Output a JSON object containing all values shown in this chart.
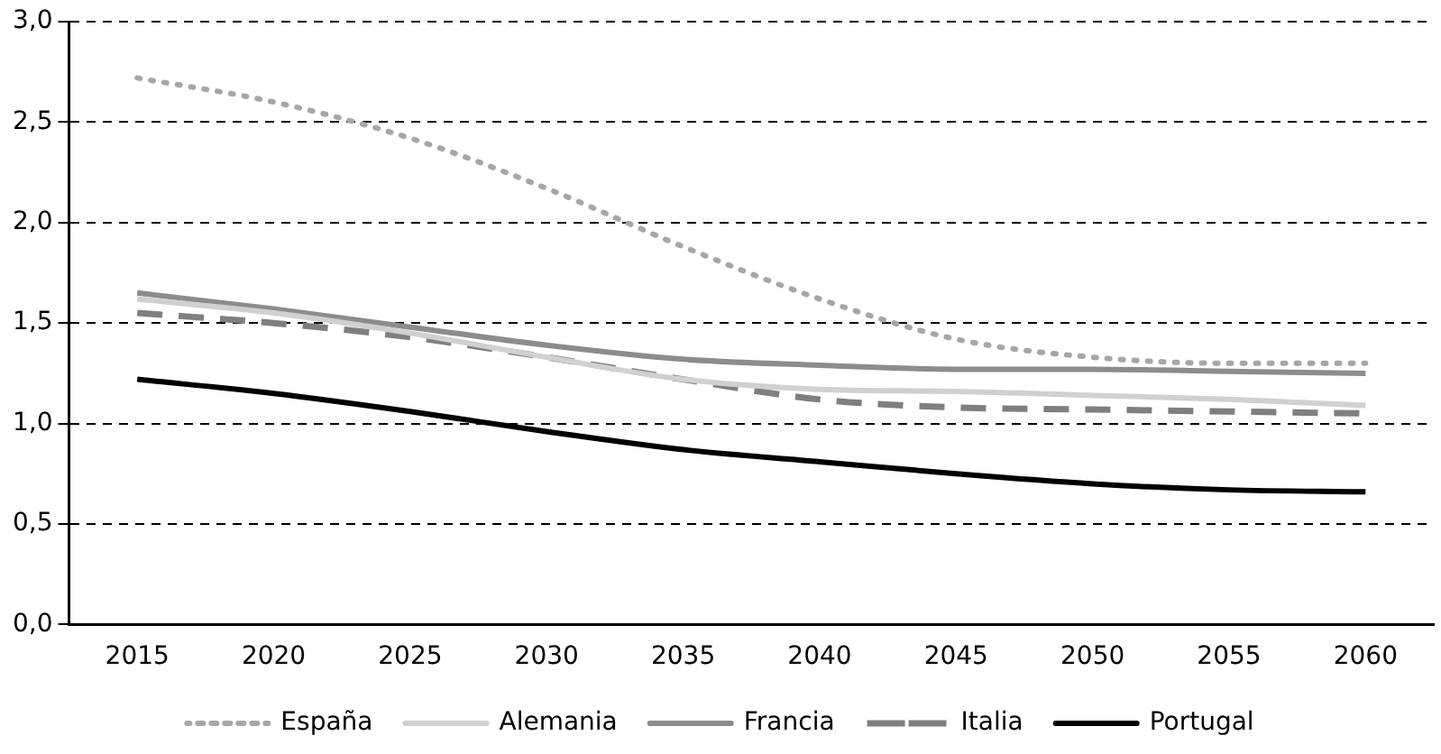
{
  "chart_data": {
    "type": "line",
    "categories": [
      "2015",
      "2020",
      "2025",
      "2030",
      "2035",
      "2040",
      "2045",
      "2050",
      "2055",
      "2060"
    ],
    "series": [
      {
        "name": "España",
        "color": "#a6a6a6",
        "line_style": "dotted",
        "values": [
          2.72,
          2.6,
          2.42,
          2.17,
          1.88,
          1.62,
          1.42,
          1.33,
          1.3,
          1.3
        ]
      },
      {
        "name": "Alemania",
        "color": "#d0d0d0",
        "line_style": "solid",
        "values": [
          1.62,
          1.55,
          1.45,
          1.33,
          1.22,
          1.17,
          1.16,
          1.14,
          1.12,
          1.09
        ]
      },
      {
        "name": "Francia",
        "color": "#8c8c8c",
        "line_style": "solid",
        "values": [
          1.65,
          1.57,
          1.48,
          1.39,
          1.32,
          1.29,
          1.27,
          1.27,
          1.26,
          1.25
        ]
      },
      {
        "name": "Italia",
        "color": "#7f7f7f",
        "line_style": "dashed",
        "values": [
          1.55,
          1.5,
          1.43,
          1.33,
          1.22,
          1.12,
          1.08,
          1.07,
          1.06,
          1.05
        ]
      },
      {
        "name": "Portugal",
        "color": "#000000",
        "line_style": "solid",
        "values": [
          1.22,
          1.15,
          1.06,
          0.96,
          0.87,
          0.81,
          0.75,
          0.7,
          0.67,
          0.66
        ]
      }
    ],
    "ylim": [
      0,
      3
    ],
    "yticks": [
      {
        "value": 0,
        "label": "0,0"
      },
      {
        "value": 0.5,
        "label": "0,5"
      },
      {
        "value": 1,
        "label": "1,0"
      },
      {
        "value": 1.5,
        "label": "1,5"
      },
      {
        "value": 2,
        "label": "2,0"
      },
      {
        "value": 2.5,
        "label": "2,5"
      },
      {
        "value": 3,
        "label": "3,0"
      }
    ],
    "grid": "y",
    "legend": "bottom",
    "marker": "none"
  }
}
